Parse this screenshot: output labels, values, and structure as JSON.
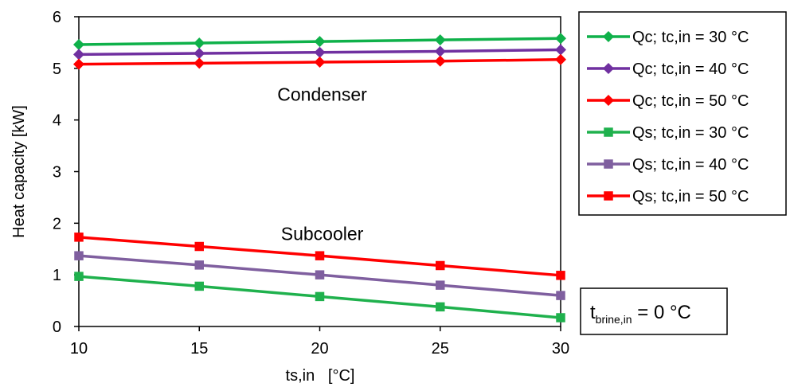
{
  "chart_data": {
    "type": "line",
    "xlabel": "ts,in   [°C]",
    "ylabel": "Heat capacity [kW]",
    "xlim": [
      10,
      30
    ],
    "ylim": [
      0,
      6
    ],
    "x_ticks": [
      10,
      15,
      20,
      25,
      30
    ],
    "y_ticks": [
      0,
      1,
      2,
      3,
      4,
      5,
      6
    ],
    "x_tick_labels": [
      "10",
      "15",
      "20",
      "25",
      "30"
    ],
    "y_tick_labels": [
      "0",
      "1",
      "2",
      "3",
      "4",
      "5",
      "6"
    ],
    "grid": false,
    "legend_position": "right",
    "x": [
      10,
      15,
      20,
      25,
      30
    ],
    "series": [
      {
        "name": "Qc; tc,in = 30 °C",
        "marker": "diamond",
        "color": "#0fb14a",
        "values": [
          5.46,
          5.49,
          5.52,
          5.55,
          5.58
        ]
      },
      {
        "name": "Qc; tc,in = 40 °C",
        "marker": "diamond",
        "color": "#7030a0",
        "values": [
          5.27,
          5.29,
          5.31,
          5.33,
          5.36
        ]
      },
      {
        "name": "Qc; tc,in = 50 °C",
        "marker": "diamond",
        "color": "#ff0000",
        "values": [
          5.08,
          5.1,
          5.12,
          5.14,
          5.17
        ]
      },
      {
        "name": "Qs; tc,in = 30 °C",
        "marker": "square",
        "color": "#1fb14d",
        "values": [
          0.97,
          0.78,
          0.58,
          0.38,
          0.17
        ]
      },
      {
        "name": "Qs; tc,in = 40 °C",
        "marker": "square",
        "color": "#7f5f9f",
        "values": [
          1.37,
          1.19,
          1.0,
          0.8,
          0.6
        ]
      },
      {
        "name": "Qs; tc,in = 50 °C",
        "marker": "square",
        "color": "#ff0000",
        "values": [
          1.73,
          1.55,
          1.37,
          1.18,
          0.99
        ]
      }
    ],
    "annotations": [
      {
        "text": "Condenser",
        "x": 20.1,
        "y": 4.5
      },
      {
        "text": "Subcooler",
        "x": 20.1,
        "y": 1.8
      }
    ],
    "condition_label": {
      "main": "t",
      "subscript": "brine,in",
      "rest": " = 0 °C"
    }
  }
}
